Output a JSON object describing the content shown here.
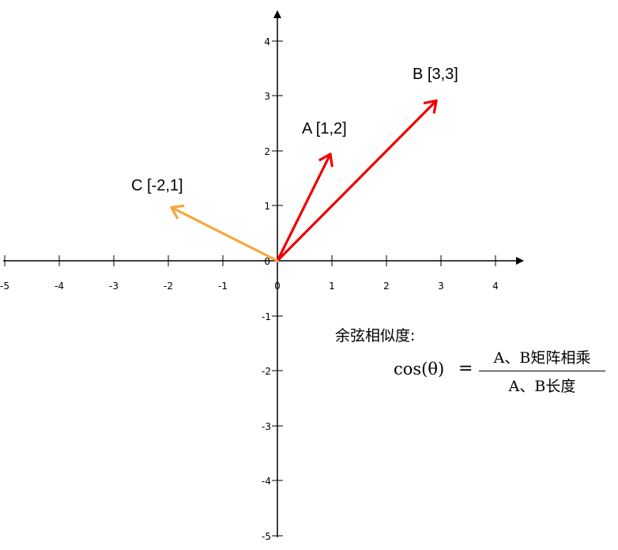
{
  "axes": {
    "x_ticks": [
      "-5",
      "-4",
      "-3",
      "-2",
      "-1",
      "0",
      "1",
      "2",
      "3",
      "4"
    ],
    "y_ticks_pos": [
      "1",
      "2",
      "3",
      "4"
    ],
    "y_ticks_neg": [
      "-1",
      "-2",
      "-3",
      "-4",
      "-5"
    ],
    "origin": "0",
    "xlim": [
      -5,
      4.5
    ],
    "ylim": [
      -5,
      4.5
    ]
  },
  "vectors": [
    {
      "label": "A [1,2]",
      "x": 1,
      "y": 2,
      "color": "#ee0000"
    },
    {
      "label": "B [3,3]",
      "x": 3,
      "y": 3,
      "color": "#ee0000"
    },
    {
      "label": "C [-2,1]",
      "x": -2,
      "y": 1,
      "color": "#f5a740"
    }
  ],
  "formula": {
    "title": "余弦相似度:",
    "lhs": "cos(θ)",
    "eq": "=",
    "numerator": "A、B矩阵相乘",
    "denominator": "A、B长度"
  }
}
